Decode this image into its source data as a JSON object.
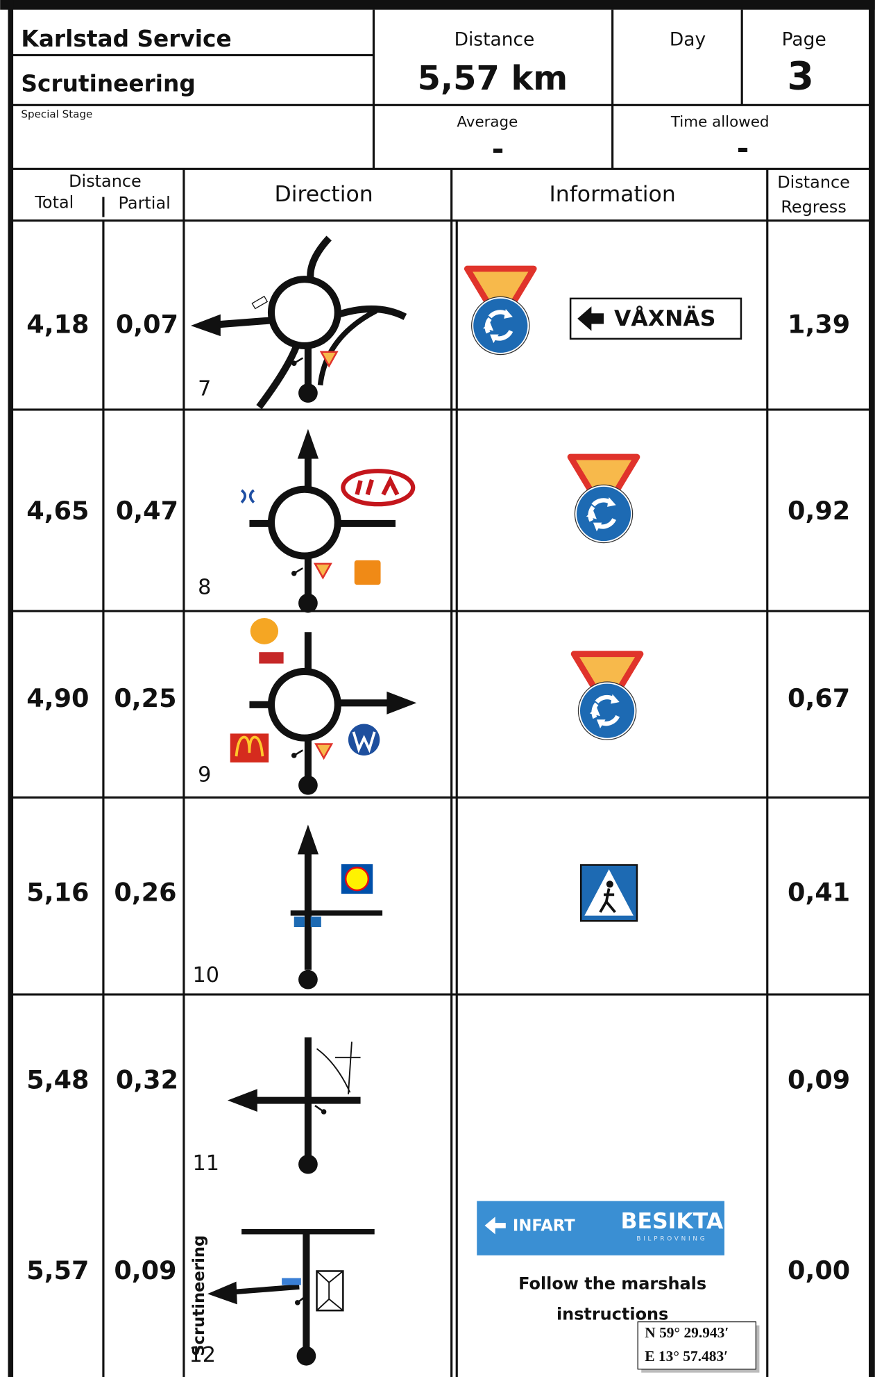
{
  "header": {
    "title": "Karlstad Service",
    "subtitle": "Scrutineering",
    "stage_type": "Special Stage",
    "distance_label": "Distance",
    "distance": "5,57 km",
    "day_label": "Day",
    "page_label": "Page",
    "page": "3",
    "average_label": "Average",
    "average": "-",
    "time_allowed_label": "Time allowed",
    "time_allowed": "-"
  },
  "columns": {
    "distance": "Distance",
    "total": "Total",
    "partial": "Partial",
    "direction": "Direction",
    "information": "Information",
    "regress": [
      "Distance",
      "Regress"
    ]
  },
  "rows": [
    {
      "total": "4,18",
      "partial": "0,07",
      "number": "7",
      "regress": "1,39",
      "sign_text": "VÅXNÄS"
    },
    {
      "total": "4,65",
      "partial": "0,47",
      "number": "8",
      "regress": "0,92"
    },
    {
      "total": "4,90",
      "partial": "0,25",
      "number": "9",
      "regress": "0,67"
    },
    {
      "total": "5,16",
      "partial": "0,26",
      "number": "10",
      "regress": "0,41"
    },
    {
      "total": "5,48",
      "partial": "0,32",
      "number": "11",
      "regress": "0,09"
    },
    {
      "total": "5,57",
      "partial": "0,09",
      "number": "12",
      "regress": "0,00",
      "direction_label": "Scrutineering",
      "sign_texts": [
        "INFART",
        "BESIKTA",
        "BILPROVNING"
      ],
      "note": [
        "Follow the marshals",
        "instructions"
      ],
      "coordinates": [
        "N 59° 29.943′",
        "E 13° 57.483′"
      ]
    }
  ]
}
